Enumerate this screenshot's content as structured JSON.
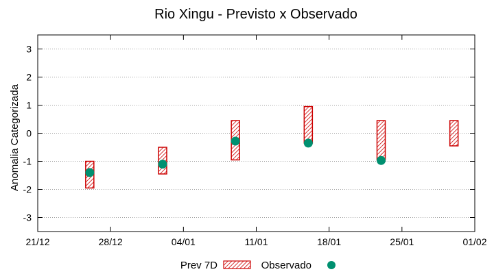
{
  "chart_data": {
    "type": "range-and-scatter",
    "title": "Rio Xingu - Previsto x Observado",
    "xlabel": "",
    "ylabel": "Anomalia Categorizada",
    "ylim": [
      -3.5,
      3.5
    ],
    "xlim": [
      0,
      42
    ],
    "y_ticks": [
      3,
      2,
      1,
      0,
      -1,
      -2,
      -3
    ],
    "x_ticks": [
      {
        "day": 0,
        "label": "21/12"
      },
      {
        "day": 7,
        "label": "28/12"
      },
      {
        "day": 14,
        "label": "04/01"
      },
      {
        "day": 21,
        "label": "11/01"
      },
      {
        "day": 28,
        "label": "18/01"
      },
      {
        "day": 35,
        "label": "25/01"
      },
      {
        "day": 42,
        "label": "01/02"
      }
    ],
    "grid": true,
    "series": [
      {
        "name": "Prev 7D",
        "kind": "range-bar",
        "color": "#cc0000",
        "points": [
          {
            "day": 5,
            "low": -1.95,
            "high": -1.0
          },
          {
            "day": 12,
            "low": -1.45,
            "high": -0.5
          },
          {
            "day": 19,
            "low": -0.95,
            "high": 0.45
          },
          {
            "day": 26,
            "low": -0.35,
            "high": 0.95
          },
          {
            "day": 33,
            "low": -0.95,
            "high": 0.45
          },
          {
            "day": 40,
            "low": -0.45,
            "high": 0.45
          }
        ]
      },
      {
        "name": "Observado",
        "kind": "scatter",
        "color": "#009070",
        "points": [
          {
            "day": 5,
            "value": -1.4
          },
          {
            "day": 12,
            "value": -1.1
          },
          {
            "day": 19,
            "value": -0.28
          },
          {
            "day": 26,
            "value": -0.35
          },
          {
            "day": 33,
            "value": -0.97
          }
        ]
      }
    ],
    "legend_position": "bottom-center"
  }
}
